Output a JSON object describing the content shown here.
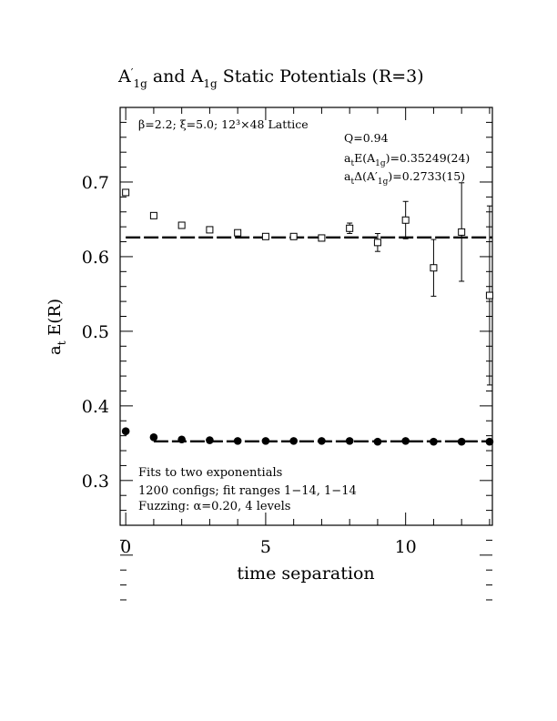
{
  "chart_data": {
    "type": "scatter",
    "title": "A′₁g and A₁g Static Potentials (R=3)",
    "xlabel": "time separation",
    "ylabel": "aₜ E(R)",
    "xlim": [
      -0.2,
      13.1
    ],
    "ylim": [
      0.24,
      0.8
    ],
    "xticks": [
      0,
      5,
      10
    ],
    "yticks": [
      0.3,
      0.4,
      0.5,
      0.6,
      0.7
    ],
    "xtick_labels": [
      "0",
      "5",
      "10"
    ],
    "ytick_labels": [
      "0.3",
      "0.4",
      "0.5",
      "0.6",
      "0.7"
    ],
    "grid": false,
    "series": [
      {
        "marker": "filled-circle",
        "x": [
          0,
          1,
          2,
          3,
          4,
          5,
          6,
          7,
          8,
          9,
          10,
          11,
          12,
          13
        ],
        "y": [
          0.366,
          0.358,
          0.355,
          0.354,
          0.353,
          0.353,
          0.353,
          0.353,
          0.353,
          0.352,
          0.353,
          0.352,
          0.352,
          0.352
        ],
        "err": [
          0.001,
          0.001,
          0.001,
          0.001,
          0.001,
          0.001,
          0.001,
          0.001,
          0.001,
          0.001,
          0.001,
          0.001,
          0.001,
          0.002
        ],
        "fit": {
          "y": 0.35249,
          "x_range": [
            1,
            13
          ]
        }
      },
      {
        "marker": "open-square",
        "x": [
          0,
          1,
          2,
          3,
          4,
          5,
          6,
          7,
          8,
          9,
          10,
          11,
          12,
          13
        ],
        "y": [
          0.686,
          0.655,
          0.642,
          0.636,
          0.632,
          0.627,
          0.627,
          0.625,
          0.638,
          0.619,
          0.649,
          0.585,
          0.633,
          0.548
        ],
        "err": [
          0.001,
          0.001,
          0.001,
          0.002,
          0.002,
          0.002,
          0.003,
          0.004,
          0.007,
          0.012,
          0.025,
          0.038,
          0.066,
          0.12
        ],
        "fit": {
          "y": 0.6258,
          "x_range": [
            0,
            13.1
          ]
        }
      }
    ],
    "annotations": {
      "params": "β=2.2; ξ=5.0; 12³×48 Lattice",
      "q": "Q=0.94",
      "energy_prefix": "a",
      "energy_sub": "t",
      "energy_mid": "E(A",
      "energy_sub2": "1g",
      "energy_suffix": ")=0.35249(24)",
      "gap_prefix": "a",
      "gap_sub": "t",
      "gap_mid": "Δ(A′",
      "gap_sub2": "1g",
      "gap_suffix": ")=0.2733(15)",
      "fits": "Fits to two exponentials",
      "configs": "1200 configs; fit ranges 1−14, 1−14",
      "fuzzing": "Fuzzing: α=0.20, 4 levels"
    },
    "title_parts": {
      "a": "A",
      "prime": "′",
      "sub": "1g",
      "and": " and A",
      "sub2": "1g",
      "rest": " Static Potentials (R=3)"
    },
    "ylabel_parts": {
      "a": "a",
      "sub": "t",
      "rest": " E(R)"
    }
  }
}
